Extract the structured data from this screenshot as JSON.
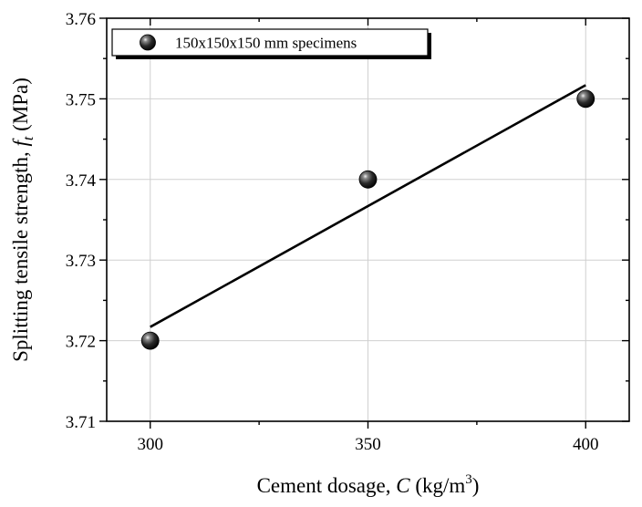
{
  "chart_data": {
    "type": "scatter",
    "title": "",
    "xlabel": {
      "main": "Cement dosage, ",
      "var": "C",
      "unit_pre": " (kg/m",
      "unit_sup": "3",
      "unit_post": ")"
    },
    "ylabel": {
      "main": "Splitting tensile strength, ",
      "var": "f",
      "var_sub": "t",
      "unit": " (MPa)"
    },
    "xlim": [
      290,
      410
    ],
    "ylim": [
      3.71,
      3.76
    ],
    "x_ticks": [
      300,
      350,
      400
    ],
    "x_tick_labels": [
      "300",
      "350",
      "400"
    ],
    "x_minor_ticks": [
      325,
      375
    ],
    "y_ticks": [
      3.71,
      3.72,
      3.73,
      3.74,
      3.75,
      3.76
    ],
    "y_tick_labels": [
      "3.71",
      "3.72",
      "3.73",
      "3.74",
      "3.75",
      "3.76"
    ],
    "y_minor_ticks": [
      3.715,
      3.725,
      3.735,
      3.745,
      3.755
    ],
    "grid": true,
    "legend_position": "top-left",
    "series": [
      {
        "name": "150x150x150 mm specimens",
        "x": [
          300,
          350,
          400
        ],
        "y": [
          3.72,
          3.74,
          3.75
        ],
        "marker": "sphere",
        "color": "#000000"
      }
    ],
    "fit_line": {
      "type": "linear",
      "x": [
        300,
        400
      ],
      "y": [
        3.7217,
        3.7517
      ],
      "color": "#000000"
    }
  }
}
